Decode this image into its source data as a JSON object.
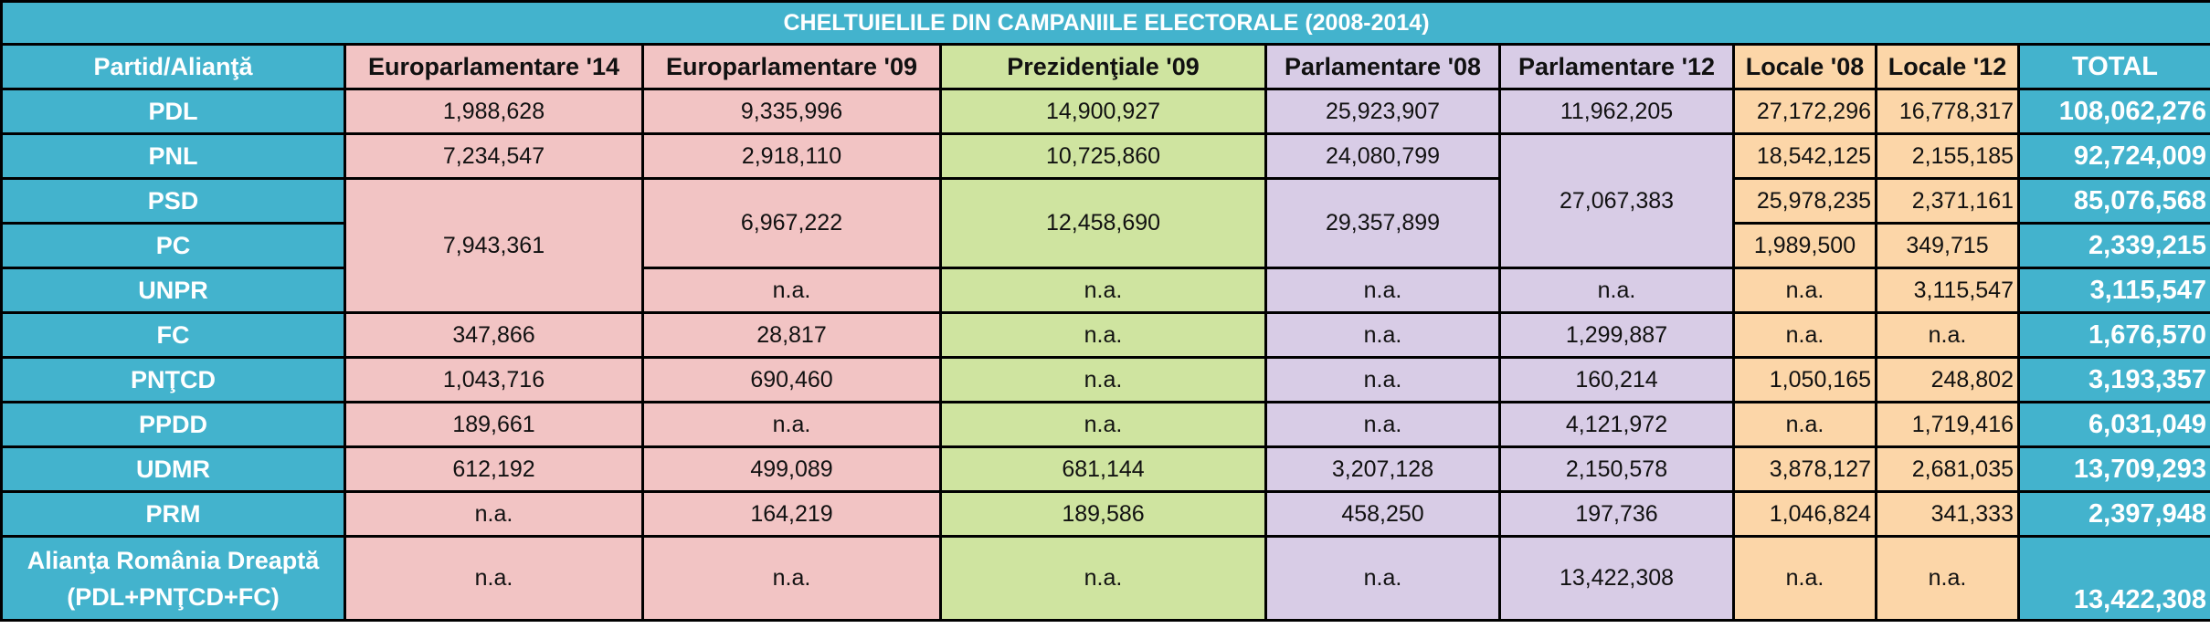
{
  "title": "CHELTUIELILE DIN CAMPANIILE ELECTORALE (2008-2014)",
  "headers": [
    "Partid/Alianţă",
    "Europarlamentare '14",
    "Europarlamentare '09",
    "Prezidenţiale '09",
    "Parlamentare '08",
    "Parlamentare '12",
    "Locale '08",
    "Locale '12",
    "TOTAL"
  ],
  "rows": {
    "pdl": {
      "party": "PDL",
      "euro14": "1,988,628",
      "euro09": "9,335,996",
      "prez09": "14,900,927",
      "parl08": "25,923,907",
      "parl12": "11,962,205",
      "loc08": "27,172,296",
      "loc12": "16,778,317",
      "total": "108,062,276"
    },
    "pnl": {
      "party": "PNL",
      "euro14": "7,234,547",
      "euro09": "2,918,110",
      "prez09": "10,725,860",
      "parl08": "24,080,799",
      "loc08": "18,542,125",
      "loc12": "2,155,185",
      "total": "92,724,009"
    },
    "psd": {
      "party": "PSD",
      "euro09": "6,967,222",
      "prez09": "12,458,690",
      "parl08": "29,357,899",
      "loc08": "25,978,235",
      "loc12": "2,371,161",
      "total": "85,076,568"
    },
    "pc": {
      "party": "PC",
      "loc08": "1,989,500",
      "loc12": "349,715",
      "total": "2,339,215"
    },
    "unpr": {
      "party": "UNPR",
      "euro09": "n.a.",
      "prez09": "n.a.",
      "parl08": "n.a.",
      "parl12": "n.a.",
      "loc08": "n.a.",
      "loc12": "3,115,547",
      "total": "3,115,547"
    },
    "fc": {
      "party": "FC",
      "euro14": "347,866",
      "euro09": "28,817",
      "prez09": "n.a.",
      "parl08": "n.a.",
      "parl12": "1,299,887",
      "loc08": "n.a.",
      "loc12": "n.a.",
      "total": "1,676,570"
    },
    "pntcd": {
      "party": "PNŢCD",
      "euro14": "1,043,716",
      "euro09": "690,460",
      "prez09": "n.a.",
      "parl08": "n.a.",
      "parl12": "160,214",
      "loc08": "1,050,165",
      "loc12": "248,802",
      "total": "3,193,357"
    },
    "ppdd": {
      "party": "PPDD",
      "euro14": "189,661",
      "euro09": "n.a.",
      "prez09": "n.a.",
      "parl08": "n.a.",
      "parl12": "4,121,972",
      "loc08": "n.a.",
      "loc12": "1,719,416",
      "total": "6,031,049"
    },
    "udmr": {
      "party": "UDMR",
      "euro14": "612,192",
      "euro09": "499,089",
      "prez09": "681,144",
      "parl08": "3,207,128",
      "parl12": "2,150,578",
      "loc08": "3,878,127",
      "loc12": "2,681,035",
      "total": "13,709,293"
    },
    "prm": {
      "party": "PRM",
      "euro14": "n.a.",
      "euro09": "164,219",
      "prez09": "189,586",
      "parl08": "458,250",
      "parl12": "197,736",
      "loc08": "1,046,824",
      "loc12": "341,333",
      "total": "2,397,948"
    },
    "ard": {
      "party_line1": "Alianţa România Dreaptă",
      "party_line2": "(PDL+PNŢCD+FC)",
      "euro14": "n.a.",
      "euro09": "n.a.",
      "prez09": "n.a.",
      "parl08": "n.a.",
      "parl12": "13,422,308",
      "loc08": "n.a.",
      "loc12": "n.a.",
      "total": "13,422,308"
    }
  },
  "merged": {
    "euro14_psd_pc_unpr": "7,943,361",
    "parl12_pnl_psd_pc": "27,067,383"
  },
  "colors": {
    "header_blue": "#43b3cd",
    "euro": "#f2c4c4",
    "prez": "#cfe4a0",
    "parl": "#d8cce6",
    "locale": "#fcd6a8"
  }
}
